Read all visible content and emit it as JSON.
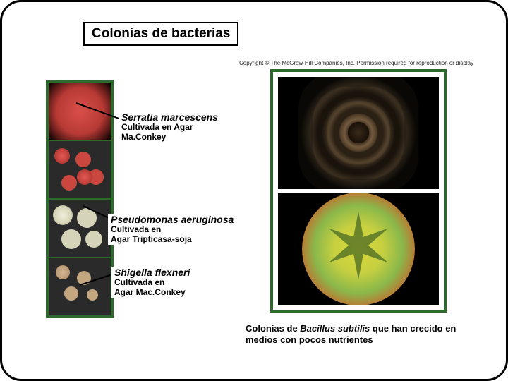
{
  "title": "Colonias de bacterias",
  "labels": {
    "serratia": {
      "name": "Serratia marcescens",
      "desc1": "Cultivada en Agar",
      "desc2": "Ma.Conkey"
    },
    "pseudomonas": {
      "name": "Pseudomonas aeruginosa",
      "desc1": "Cultivada en",
      "desc2": "Agar Tripticasa-soja"
    },
    "shigella": {
      "name": "Shigella flexneri",
      "desc1": "Cultivada en",
      "desc2": "Agar Mac.Conkey"
    }
  },
  "copyright": "Copyright © The McGraw-Hill Companies, Inc. Permission required for reproduction or display",
  "caption_pre": "Colonias de ",
  "caption_species": "Bacillus subtilis",
  "caption_post": " que han crecido en medios con pocos nutrientes",
  "colors": {
    "frame_green": "#2d6b2d"
  }
}
